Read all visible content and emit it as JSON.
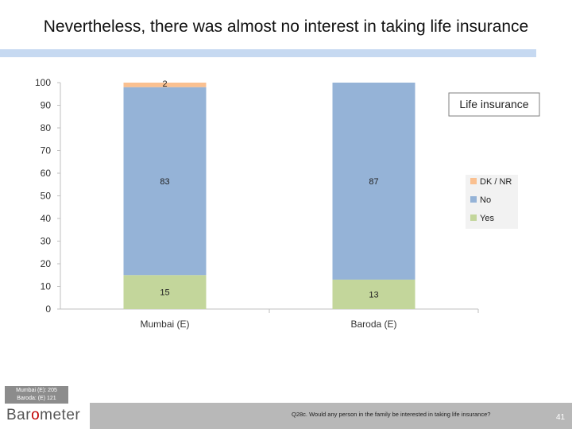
{
  "slide": {
    "title": "Nevertheless, there was almost no interest in taking life insurance",
    "page_number": "41"
  },
  "sample": {
    "line1": "Mumbai (E): 205",
    "line2": "Baroda: (E) 121"
  },
  "footer": {
    "logo_part1": "Bar",
    "logo_dot": "o",
    "logo_part2": "meter",
    "question": "Q28c. Would any person in the family be interested in taking life insurance?"
  },
  "colors": {
    "yes": "#c3d69b",
    "no": "#95b3d7",
    "dk_nr": "#fac090",
    "title_bar": "#c6d9f1"
  },
  "chart_data": {
    "type": "bar",
    "stacked": true,
    "title": "Life insurance",
    "categories": [
      "Mumbai (E)",
      "Baroda (E)"
    ],
    "series": [
      {
        "name": "Yes",
        "values": [
          15,
          13
        ],
        "labels": [
          "15",
          "13"
        ]
      },
      {
        "name": "No",
        "values": [
          83,
          87
        ],
        "labels": [
          "83",
          "87"
        ]
      },
      {
        "name": "DK / NR",
        "values": [
          2,
          0
        ],
        "labels": [
          "2",
          ""
        ]
      }
    ],
    "legend": [
      "DK / NR",
      "No",
      "Yes"
    ],
    "legend_position": "right",
    "ylim": [
      0,
      100
    ],
    "yticks": [
      0,
      10,
      20,
      30,
      40,
      50,
      60,
      70,
      80,
      90,
      100
    ],
    "xlabel": "",
    "ylabel": "",
    "grid": false
  }
}
